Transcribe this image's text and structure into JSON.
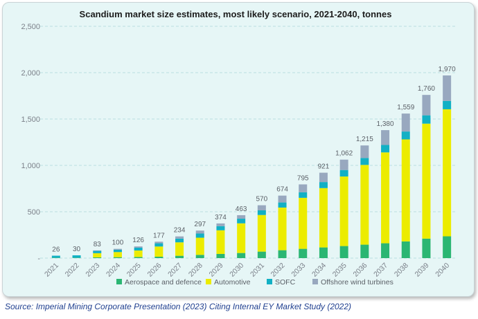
{
  "chart_data": {
    "type": "bar",
    "stacked": true,
    "title": "Scandium market size estimates, most likely scenario, 2021-2040, tonnes",
    "categories": [
      "2021",
      "2022",
      "2023",
      "2024",
      "2025",
      "2026",
      "2027",
      "2028",
      "2029",
      "2030",
      "2031",
      "2032",
      "2033",
      "2034",
      "2035",
      "2036",
      "2037",
      "2038",
      "2039",
      "2040"
    ],
    "totals": [
      26,
      30,
      83,
      100,
      126,
      177,
      234,
      297,
      374,
      463,
      570,
      674,
      795,
      921,
      1062,
      1215,
      1380,
      1559,
      1760,
      1970
    ],
    "total_labels": [
      "26",
      "30",
      "83",
      "100",
      "126",
      "177",
      "234",
      "297",
      "374",
      "463",
      "570",
      "674",
      "795",
      "921",
      "1,062",
      "1,215",
      "1,380",
      "1,559",
      "1,760",
      "1,970"
    ],
    "series": [
      {
        "name": "Aerospace and defence",
        "color": "#2bb673",
        "values": [
          5,
          5,
          8,
          10,
          12,
          15,
          25,
          35,
          45,
          55,
          70,
          85,
          100,
          115,
          130,
          145,
          160,
          180,
          210,
          235
        ]
      },
      {
        "name": "Automotive",
        "color": "#ecec00",
        "values": [
          0,
          0,
          45,
          55,
          70,
          110,
          145,
          185,
          255,
          320,
          395,
          460,
          550,
          640,
          750,
          860,
          980,
          1100,
          1240,
          1370
        ]
      },
      {
        "name": "SOFC",
        "color": "#12b0c4",
        "values": [
          21,
          25,
          25,
          25,
          30,
          35,
          40,
          45,
          45,
          50,
          50,
          55,
          60,
          65,
          70,
          75,
          80,
          85,
          90,
          90
        ]
      },
      {
        "name": "Offshore wind turbines",
        "color": "#98a8bf",
        "values": [
          0,
          0,
          5,
          10,
          14,
          17,
          24,
          32,
          29,
          38,
          55,
          74,
          85,
          101,
          112,
          135,
          160,
          194,
          220,
          275
        ]
      }
    ],
    "y_ticks": [
      0,
      500,
      1000,
      1500,
      2000,
      2500
    ],
    "y_tick_labels": [
      "-",
      "500",
      "1,000",
      "1,500",
      "2,000",
      "2,500"
    ],
    "ylim": [
      0,
      2500
    ],
    "grid": true,
    "legend_position": "bottom",
    "source": "Source: Imperial Mining Corporate Presentation (2023) Citing Internal EY Market Study (2022)"
  }
}
